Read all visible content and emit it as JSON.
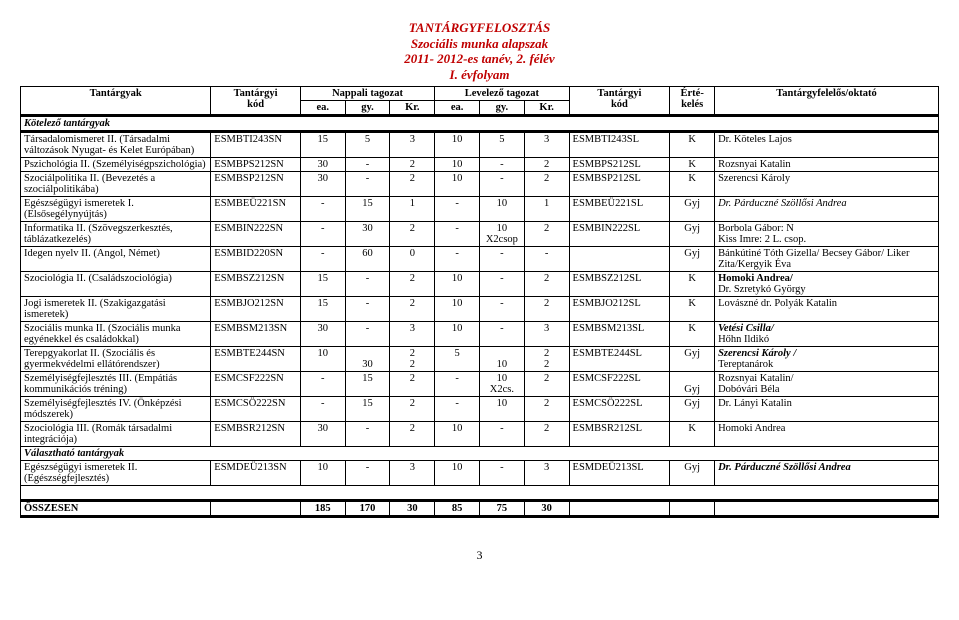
{
  "title": {
    "l1": "TANTÁRGYFELOSZTÁS",
    "l2": "Szociális munka alapszak",
    "l3": "2011- 2012-es tanév, 2. félév",
    "l4": "I. évfolyam"
  },
  "headers": {
    "subject": "Tantárgyak",
    "code1a": "Tantárgyi",
    "code1b": "kód",
    "day": "Nappali tagozat",
    "eve": "Levelező tagozat",
    "ea": "ea.",
    "gy": "gy.",
    "kr": "Kr.",
    "code2a": "Tantárgyi",
    "code2b": "kód",
    "gradea": "Érté-",
    "gradeb": "kelés",
    "teacher": "Tantárgyfelelős/oktató"
  },
  "section_required": "Kötelező tantárgyak",
  "section_optional": "Választható tantárgyak",
  "rows": [
    {
      "name": "Társadalomismeret II. (Társadalmi változások Nyugat- és Kelet Európában)",
      "c1": "ESMBTI243SN",
      "d": [
        "15",
        "5",
        "3"
      ],
      "e": [
        "10",
        "5",
        "3"
      ],
      "c2": "ESMBTI243SL",
      "g": "K",
      "t": "Dr. Köteles Lajos"
    },
    {
      "name": "Pszichológia II. (Személyiségpszichológia)",
      "c1": "ESMBPS212SN",
      "d": [
        "30",
        "-",
        "2"
      ],
      "e": [
        "10",
        "-",
        "2"
      ],
      "c2": "ESMBPS212SL",
      "g": "K",
      "t": "Rozsnyai Katalin"
    },
    {
      "name": "Szociálpolitika II. (Bevezetés a szociálpolitikába)",
      "c1": "ESMBSP212SN",
      "d": [
        "30",
        "-",
        "2"
      ],
      "e": [
        "10",
        "-",
        "2"
      ],
      "c2": "ESMBSP212SL",
      "g": "K",
      "t": "Szerencsi Károly"
    },
    {
      "name": "Egészségügyi ismeretek I. (Elsősegélynyújtás)",
      "c1": "ESMBEÜ221SN",
      "d": [
        "-",
        "15",
        "1"
      ],
      "e": [
        "-",
        "10",
        "1"
      ],
      "c2": "ESMBEÜ221SL",
      "g": "Gyj",
      "t": "Dr. Párduczné Szöllősi Andrea",
      "t_ital": true
    },
    {
      "name": "Informatika II. (Szövegszerkesztés, táblázatkezelés)",
      "c1": "ESMBIN222SN",
      "d": [
        "-",
        "30",
        "2"
      ],
      "e": [
        "-",
        "10\nX2csop",
        "2"
      ],
      "c2": "ESMBIN222SL",
      "g": "Gyj",
      "t": "Borbola Gábor: N\nKiss Imre: 2 L. csop."
    },
    {
      "name": "Idegen nyelv II. (Angol, Német)",
      "c1": "ESMBID220SN",
      "d": [
        "-",
        "60",
        "0"
      ],
      "e": [
        "-",
        "-",
        "-"
      ],
      "c2": "",
      "g": "Gyj",
      "t": "Bánkútiné Tóth Gizella/ Becsey Gábor/ Liker Zita/Kergyik Éva"
    },
    {
      "name": "Szociológia II. (Családszociológia)",
      "c1": "ESMBSZ212SN",
      "d": [
        "15",
        "-",
        "2"
      ],
      "e": [
        "10",
        "-",
        "2"
      ],
      "c2": "ESMBSZ212SL",
      "g": "K",
      "t": "Homoki Andrea/\nDr. Szretykó György",
      "t_bold1": true
    },
    {
      "name": "Jogi ismeretek II. (Szakigazgatási ismeretek)",
      "c1": "ESMBJO212SN",
      "d": [
        "15",
        "-",
        "2"
      ],
      "e": [
        "10",
        "-",
        "2"
      ],
      "c2": "ESMBJO212SL",
      "g": "K",
      "t": "Lovászné dr. Polyák Katalin"
    },
    {
      "name": "Szociális munka II. (Szociális munka egyénekkel és családokkal)",
      "c1": "ESMBSM213SN",
      "d": [
        "30",
        "-",
        "3"
      ],
      "e": [
        "10",
        "-",
        "3"
      ],
      "c2": "ESMBSM213SL",
      "g": "K",
      "t": "Vetési Csilla/\nHőhn Ildikó",
      "t_bold1": true,
      "t_ital1": true
    },
    {
      "name": "Terepgyakorlat II. (Szociális és gyermekvédelmi ellátórendszer)",
      "c1": "ESMBTE244SN",
      "d": [
        "10\n",
        "\n30",
        "2\n2"
      ],
      "e": [
        "5\n",
        "\n10",
        "2\n2"
      ],
      "c2": "ESMBTE244SL",
      "g": "Gyj",
      "t": "Szerencsi Károly /\nTereptanárok",
      "t_bold1": true,
      "t_ital1": true
    },
    {
      "name": "Személyiségfejlesztés III. (Empátiás kommunikációs tréning)",
      "c1": "ESMCSF222SN",
      "d": [
        "-",
        "15",
        "2"
      ],
      "e": [
        "-",
        "10\nX2cs.",
        "2"
      ],
      "c2": "ESMCSF222SL",
      "g": "\nGyj",
      "t": "Rozsnyai Katalin/\nDobóvári Béla"
    },
    {
      "name": "Személyiségfejlesztés IV. (Önképzési módszerek)",
      "c1": "ESMCSÖ222SN",
      "d": [
        "-",
        "15",
        "2"
      ],
      "e": [
        "-",
        "10",
        "2"
      ],
      "c2": "ESMCSÖ222SL",
      "g": "Gyj",
      "t": "Dr. Lányi Katalin"
    },
    {
      "name": "Szociológia III. (Romák társadalmi integrációja)",
      "c1": "ESMBSR212SN",
      "d": [
        "30",
        "-",
        "2"
      ],
      "e": [
        "10",
        "-",
        "2"
      ],
      "c2": "ESMBSR212SL",
      "g": "K",
      "t": "Homoki Andrea"
    }
  ],
  "optional_row": {
    "name": "Egészségügyi ismeretek II. (Egészségfejlesztés)",
    "c1": "ESMDEÜ213SN",
    "d": [
      "10",
      "-",
      "3"
    ],
    "e": [
      "10",
      "-",
      "3"
    ],
    "c2": "ESMDEÜ213SL",
    "g": "Gyj",
    "t": "Dr. Párduczné Szöllősi Andrea",
    "t_ital": true,
    "t_bold": true
  },
  "total_label": "ÖSSZESEN",
  "totals": [
    "185",
    "170",
    "30",
    "85",
    "75",
    "30"
  ],
  "page": "3"
}
